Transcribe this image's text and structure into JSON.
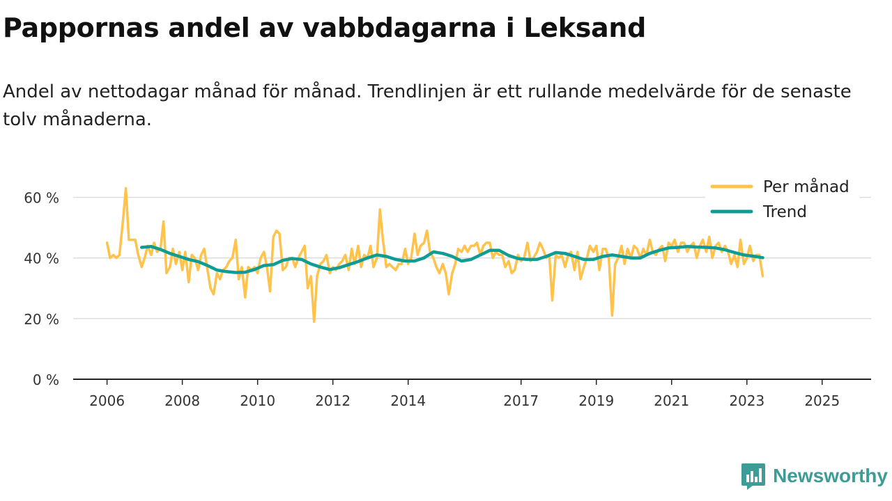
{
  "title": "Pappornas andel av vabbdagarna i Leksand",
  "subtitle": "Andel av nettodagar månad för månad. Trendlinjen är ett rullande medelvärde för de senaste tolv månaderna.",
  "brand": {
    "name": "Newsworthy",
    "logo_icon": "bar-chart-logo-icon"
  },
  "colors": {
    "monthly": "#ffc24b",
    "trend": "#0f9c94",
    "grid": "#dddddd",
    "axis": "#222222"
  },
  "chart_data": {
    "type": "line",
    "x_unit": "decimal year",
    "y_unit": "percent",
    "ylim": [
      0,
      70
    ],
    "yticks": [
      {
        "value": 0,
        "label": "0 %"
      },
      {
        "value": 20,
        "label": "20 %"
      },
      {
        "value": 40,
        "label": "40 %"
      },
      {
        "value": 60,
        "label": "60 %"
      }
    ],
    "xlim": [
      2005.1,
      2026.3
    ],
    "xticks": [
      {
        "value": 2006,
        "label": "2006"
      },
      {
        "value": 2008,
        "label": "2008"
      },
      {
        "value": 2010,
        "label": "2010"
      },
      {
        "value": 2012,
        "label": "2012"
      },
      {
        "value": 2014,
        "label": "2014"
      },
      {
        "value": 2017,
        "label": "2017"
      },
      {
        "value": 2019,
        "label": "2019"
      },
      {
        "value": 2021,
        "label": "2021"
      },
      {
        "value": 2023,
        "label": "2023"
      },
      {
        "value": 2025,
        "label": "2025"
      }
    ],
    "grid": true,
    "legend_position": "top-right",
    "series": [
      {
        "name": "Per månad",
        "color": "#ffc24b",
        "points": [
          [
            2006.0,
            45
          ],
          [
            2006.08,
            40
          ],
          [
            2006.17,
            41
          ],
          [
            2006.25,
            40
          ],
          [
            2006.33,
            41
          ],
          [
            2006.42,
            52
          ],
          [
            2006.5,
            63
          ],
          [
            2006.58,
            46
          ],
          [
            2006.67,
            46
          ],
          [
            2006.75,
            46
          ],
          [
            2006.83,
            41
          ],
          [
            2006.92,
            37
          ],
          [
            2007.0,
            40
          ],
          [
            2007.08,
            44
          ],
          [
            2007.17,
            41
          ],
          [
            2007.25,
            45
          ],
          [
            2007.33,
            42
          ],
          [
            2007.42,
            43
          ],
          [
            2007.5,
            52
          ],
          [
            2007.58,
            35
          ],
          [
            2007.67,
            37
          ],
          [
            2007.75,
            43
          ],
          [
            2007.83,
            38
          ],
          [
            2007.92,
            42
          ],
          [
            2008.0,
            36
          ],
          [
            2008.08,
            42
          ],
          [
            2008.17,
            32
          ],
          [
            2008.25,
            41
          ],
          [
            2008.33,
            40
          ],
          [
            2008.42,
            36
          ],
          [
            2008.5,
            41
          ],
          [
            2008.58,
            43
          ],
          [
            2008.67,
            36
          ],
          [
            2008.75,
            30
          ],
          [
            2008.83,
            28
          ],
          [
            2008.92,
            35
          ],
          [
            2009.0,
            33
          ],
          [
            2009.08,
            36
          ],
          [
            2009.17,
            37
          ],
          [
            2009.25,
            39
          ],
          [
            2009.33,
            40
          ],
          [
            2009.42,
            46
          ],
          [
            2009.5,
            33
          ],
          [
            2009.58,
            37
          ],
          [
            2009.67,
            27
          ],
          [
            2009.75,
            37
          ],
          [
            2009.83,
            36
          ],
          [
            2009.92,
            37
          ],
          [
            2010.0,
            35
          ],
          [
            2010.08,
            40
          ],
          [
            2010.17,
            42
          ],
          [
            2010.25,
            37
          ],
          [
            2010.33,
            29
          ],
          [
            2010.42,
            47
          ],
          [
            2010.5,
            49
          ],
          [
            2010.58,
            48
          ],
          [
            2010.67,
            36
          ],
          [
            2010.75,
            37
          ],
          [
            2010.83,
            40
          ],
          [
            2010.92,
            40
          ],
          [
            2011.0,
            37
          ],
          [
            2011.08,
            40
          ],
          [
            2011.17,
            42
          ],
          [
            2011.25,
            44
          ],
          [
            2011.33,
            30
          ],
          [
            2011.42,
            34
          ],
          [
            2011.5,
            19
          ],
          [
            2011.58,
            34
          ],
          [
            2011.67,
            38
          ],
          [
            2011.75,
            39
          ],
          [
            2011.83,
            41
          ],
          [
            2011.92,
            35
          ],
          [
            2012.0,
            37
          ],
          [
            2012.08,
            36
          ],
          [
            2012.17,
            38
          ],
          [
            2012.25,
            39
          ],
          [
            2012.33,
            41
          ],
          [
            2012.42,
            36
          ],
          [
            2012.5,
            43
          ],
          [
            2012.58,
            38
          ],
          [
            2012.67,
            44
          ],
          [
            2012.75,
            37
          ],
          [
            2012.83,
            41
          ],
          [
            2012.92,
            40
          ],
          [
            2013.0,
            44
          ],
          [
            2013.08,
            37
          ],
          [
            2013.17,
            40
          ],
          [
            2013.25,
            56
          ],
          [
            2013.33,
            46
          ],
          [
            2013.42,
            37
          ],
          [
            2013.5,
            38
          ],
          [
            2013.58,
            37
          ],
          [
            2013.67,
            36
          ],
          [
            2013.75,
            38
          ],
          [
            2013.83,
            38
          ],
          [
            2013.92,
            43
          ],
          [
            2014.0,
            38
          ],
          [
            2014.08,
            40
          ],
          [
            2014.17,
            48
          ],
          [
            2014.25,
            41
          ],
          [
            2014.33,
            44
          ],
          [
            2014.42,
            45
          ],
          [
            2014.5,
            49
          ],
          [
            2014.58,
            42
          ],
          [
            2014.67,
            40
          ],
          [
            2014.75,
            37
          ],
          [
            2014.83,
            35
          ],
          [
            2014.92,
            38
          ],
          [
            2015.0,
            35
          ],
          [
            2015.08,
            28
          ],
          [
            2015.17,
            35
          ],
          [
            2015.25,
            38
          ],
          [
            2015.33,
            43
          ],
          [
            2015.42,
            42
          ],
          [
            2015.5,
            44
          ],
          [
            2015.58,
            42
          ],
          [
            2015.67,
            44
          ],
          [
            2015.75,
            44
          ],
          [
            2015.83,
            45
          ],
          [
            2015.92,
            41
          ],
          [
            2016.0,
            44
          ],
          [
            2016.08,
            45
          ],
          [
            2016.17,
            45
          ],
          [
            2016.25,
            40
          ],
          [
            2016.33,
            42
          ],
          [
            2016.42,
            41
          ],
          [
            2016.5,
            41
          ],
          [
            2016.58,
            37
          ],
          [
            2016.67,
            39
          ],
          [
            2016.75,
            35
          ],
          [
            2016.83,
            36
          ],
          [
            2016.92,
            41
          ],
          [
            2017.0,
            39
          ],
          [
            2017.08,
            40
          ],
          [
            2017.17,
            45
          ],
          [
            2017.25,
            39
          ],
          [
            2017.33,
            40
          ],
          [
            2017.42,
            42
          ],
          [
            2017.5,
            45
          ],
          [
            2017.58,
            43
          ],
          [
            2017.67,
            40
          ],
          [
            2017.75,
            41
          ],
          [
            2017.83,
            26
          ],
          [
            2017.92,
            41
          ],
          [
            2018.0,
            40
          ],
          [
            2018.08,
            41
          ],
          [
            2018.17,
            37
          ],
          [
            2018.25,
            41
          ],
          [
            2018.33,
            42
          ],
          [
            2018.42,
            36
          ],
          [
            2018.5,
            42
          ],
          [
            2018.58,
            33
          ],
          [
            2018.67,
            37
          ],
          [
            2018.75,
            40
          ],
          [
            2018.83,
            44
          ],
          [
            2018.92,
            42
          ],
          [
            2019.0,
            44
          ],
          [
            2019.08,
            36
          ],
          [
            2019.17,
            43
          ],
          [
            2019.25,
            43
          ],
          [
            2019.33,
            40
          ],
          [
            2019.42,
            21
          ],
          [
            2019.5,
            38
          ],
          [
            2019.58,
            40
          ],
          [
            2019.67,
            44
          ],
          [
            2019.75,
            38
          ],
          [
            2019.83,
            43
          ],
          [
            2019.92,
            40
          ],
          [
            2020.0,
            44
          ],
          [
            2020.08,
            43
          ],
          [
            2020.17,
            40
          ],
          [
            2020.25,
            43
          ],
          [
            2020.33,
            41
          ],
          [
            2020.42,
            46
          ],
          [
            2020.5,
            42
          ],
          [
            2020.58,
            41
          ],
          [
            2020.67,
            43
          ],
          [
            2020.75,
            44
          ],
          [
            2020.83,
            39
          ],
          [
            2020.92,
            45
          ],
          [
            2021.0,
            44
          ],
          [
            2021.08,
            46
          ],
          [
            2021.17,
            42
          ],
          [
            2021.25,
            45
          ],
          [
            2021.33,
            45
          ],
          [
            2021.42,
            42
          ],
          [
            2021.5,
            44
          ],
          [
            2021.58,
            45
          ],
          [
            2021.67,
            40
          ],
          [
            2021.75,
            44
          ],
          [
            2021.83,
            46
          ],
          [
            2021.92,
            42
          ],
          [
            2022.0,
            47
          ],
          [
            2022.08,
            40
          ],
          [
            2022.17,
            44
          ],
          [
            2022.25,
            45
          ],
          [
            2022.33,
            42
          ],
          [
            2022.42,
            44
          ],
          [
            2022.5,
            42
          ],
          [
            2022.58,
            38
          ],
          [
            2022.67,
            41
          ],
          [
            2022.75,
            37
          ],
          [
            2022.83,
            46
          ],
          [
            2022.92,
            38
          ],
          [
            2023.0,
            40
          ],
          [
            2023.08,
            44
          ],
          [
            2023.17,
            39
          ],
          [
            2023.25,
            41
          ],
          [
            2023.33,
            41
          ],
          [
            2023.42,
            34
          ]
        ]
      },
      {
        "name": "Trend",
        "color": "#0f9c94",
        "points": [
          [
            2006.92,
            43.5
          ],
          [
            2007.17,
            43.8
          ],
          [
            2007.42,
            42.8
          ],
          [
            2007.67,
            41.5
          ],
          [
            2007.92,
            40.5
          ],
          [
            2008.17,
            39.5
          ],
          [
            2008.42,
            38.8
          ],
          [
            2008.67,
            37.5
          ],
          [
            2008.92,
            36
          ],
          [
            2009.17,
            35.5
          ],
          [
            2009.42,
            35.2
          ],
          [
            2009.67,
            35.3
          ],
          [
            2009.92,
            36.2
          ],
          [
            2010.17,
            37.5
          ],
          [
            2010.42,
            37.8
          ],
          [
            2010.67,
            39.2
          ],
          [
            2010.92,
            39.8
          ],
          [
            2011.17,
            39.5
          ],
          [
            2011.42,
            38
          ],
          [
            2011.67,
            37
          ],
          [
            2011.92,
            36.2
          ],
          [
            2012.17,
            36.8
          ],
          [
            2012.42,
            37.8
          ],
          [
            2012.67,
            38.8
          ],
          [
            2012.92,
            40
          ],
          [
            2013.17,
            41
          ],
          [
            2013.42,
            40.5
          ],
          [
            2013.67,
            39.5
          ],
          [
            2013.92,
            39
          ],
          [
            2014.17,
            39
          ],
          [
            2014.42,
            40
          ],
          [
            2014.67,
            42
          ],
          [
            2014.92,
            41.5
          ],
          [
            2015.17,
            40.5
          ],
          [
            2015.42,
            39
          ],
          [
            2015.67,
            39.5
          ],
          [
            2015.92,
            41
          ],
          [
            2016.17,
            42.5
          ],
          [
            2016.42,
            42.5
          ],
          [
            2016.67,
            40.8
          ],
          [
            2016.92,
            39.8
          ],
          [
            2017.17,
            39.5
          ],
          [
            2017.42,
            39.5
          ],
          [
            2017.67,
            40.5
          ],
          [
            2017.92,
            41.8
          ],
          [
            2018.17,
            41.5
          ],
          [
            2018.42,
            40.5
          ],
          [
            2018.67,
            39.5
          ],
          [
            2018.92,
            39.5
          ],
          [
            2019.17,
            40.5
          ],
          [
            2019.42,
            41
          ],
          [
            2019.67,
            40.5
          ],
          [
            2019.92,
            40
          ],
          [
            2020.17,
            40
          ],
          [
            2020.42,
            41.5
          ],
          [
            2020.67,
            42.5
          ],
          [
            2020.92,
            43.3
          ],
          [
            2021.17,
            43.5
          ],
          [
            2021.42,
            43.8
          ],
          [
            2021.67,
            43.6
          ],
          [
            2021.92,
            43.5
          ],
          [
            2022.17,
            43.3
          ],
          [
            2022.42,
            42.7
          ],
          [
            2022.67,
            41.8
          ],
          [
            2022.92,
            41
          ],
          [
            2023.17,
            40.6
          ],
          [
            2023.42,
            40.1
          ]
        ]
      }
    ]
  }
}
